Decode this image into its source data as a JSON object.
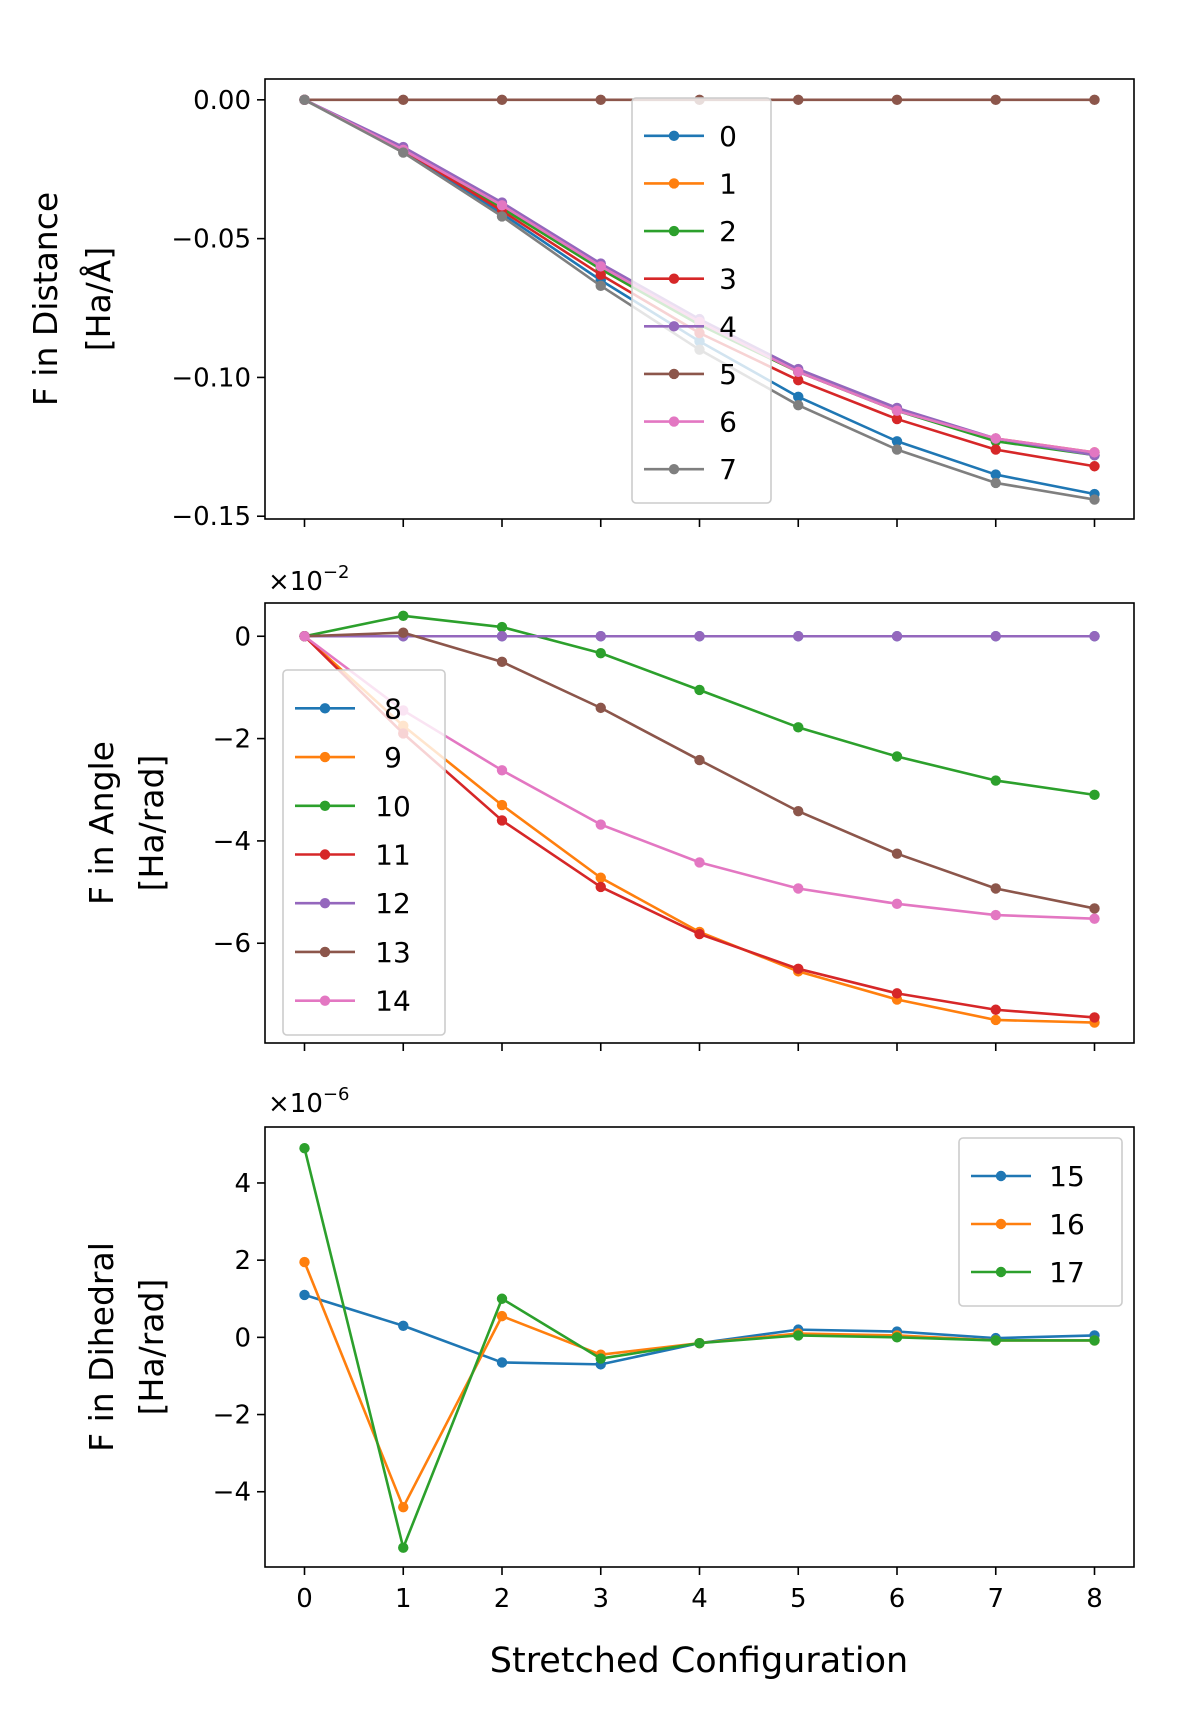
{
  "figure": {
    "xlabel": "Stretched Configuration",
    "x_tick_labels": [
      "0",
      "1",
      "2",
      "3",
      "4",
      "5",
      "6",
      "7",
      "8"
    ]
  },
  "chart_data": [
    {
      "type": "line",
      "title": "",
      "xlabel": "",
      "ylabel": [
        "F in Distance",
        "[Ha/Å]"
      ],
      "multiplier": null,
      "x": [
        0,
        1,
        2,
        3,
        4,
        5,
        6,
        7,
        8
      ],
      "xlim": [
        -0.4,
        8.4
      ],
      "ylim": [
        -0.151,
        0.0075
      ],
      "yticks": [
        0.0,
        -0.05,
        -0.1,
        -0.15
      ],
      "ytick_labels": [
        "0.00",
        "−0.05",
        "−0.10",
        "−0.15"
      ],
      "legend_position": "upper-center",
      "series": [
        {
          "name": "0",
          "color": "#1f77b4",
          "values": [
            0,
            -0.018,
            -0.041,
            -0.065,
            -0.087,
            -0.107,
            -0.123,
            -0.135,
            -0.142
          ]
        },
        {
          "name": "1",
          "color": "#ff7f0e",
          "values": [
            0,
            -0.018,
            -0.039,
            -0.061,
            -0.081,
            -0.098,
            -0.112,
            -0.122,
            -0.127
          ]
        },
        {
          "name": "2",
          "color": "#2ca02c",
          "values": [
            0,
            -0.018,
            -0.039,
            -0.061,
            -0.081,
            -0.098,
            -0.112,
            -0.123,
            -0.128
          ]
        },
        {
          "name": "3",
          "color": "#d62728",
          "values": [
            0,
            -0.018,
            -0.04,
            -0.063,
            -0.084,
            -0.101,
            -0.115,
            -0.126,
            -0.132
          ]
        },
        {
          "name": "4",
          "color": "#9467bd",
          "values": [
            0,
            -0.017,
            -0.037,
            -0.059,
            -0.079,
            -0.097,
            -0.111,
            -0.122,
            -0.128
          ]
        },
        {
          "name": "5",
          "color": "#8c564b",
          "values": [
            0,
            0,
            0,
            0,
            0,
            0,
            0,
            0,
            0
          ]
        },
        {
          "name": "6",
          "color": "#e377c2",
          "values": [
            0,
            -0.018,
            -0.038,
            -0.06,
            -0.08,
            -0.098,
            -0.112,
            -0.122,
            -0.127
          ]
        },
        {
          "name": "7",
          "color": "#7f7f7f",
          "values": [
            0,
            -0.019,
            -0.042,
            -0.067,
            -0.09,
            -0.11,
            -0.126,
            -0.138,
            -0.144
          ]
        }
      ]
    },
    {
      "type": "line",
      "title": "",
      "xlabel": "",
      "ylabel": [
        "F in Angle",
        "[Ha/rad]"
      ],
      "multiplier": {
        "prefix": "×10",
        "exponent": "−2"
      },
      "x": [
        0,
        1,
        2,
        3,
        4,
        5,
        6,
        7,
        8
      ],
      "xlim": [
        -0.4,
        8.4
      ],
      "ylim": [
        -7.95,
        0.65
      ],
      "yticks": [
        0,
        -2,
        -4,
        -6
      ],
      "ytick_labels": [
        "0",
        "−2",
        "−4",
        "−6"
      ],
      "legend_position": "center-left",
      "series": [
        {
          "name": "8",
          "color": "#1f77b4",
          "values": [
            0,
            0,
            0,
            0,
            0,
            0,
            0,
            0,
            0
          ]
        },
        {
          "name": "9",
          "color": "#ff7f0e",
          "values": [
            0,
            -1.75,
            -3.3,
            -4.72,
            -5.78,
            -6.55,
            -7.1,
            -7.5,
            -7.55
          ]
        },
        {
          "name": "10",
          "color": "#2ca02c",
          "values": [
            0,
            0.4,
            0.18,
            -0.33,
            -1.05,
            -1.78,
            -2.35,
            -2.82,
            -3.1
          ]
        },
        {
          "name": "11",
          "color": "#d62728",
          "values": [
            0,
            -1.9,
            -3.6,
            -4.9,
            -5.82,
            -6.5,
            -6.98,
            -7.3,
            -7.45
          ]
        },
        {
          "name": "12",
          "color": "#9467bd",
          "values": [
            0,
            0,
            0,
            0,
            0,
            0,
            0,
            0,
            0
          ]
        },
        {
          "name": "13",
          "color": "#8c564b",
          "values": [
            0,
            0.07,
            -0.5,
            -1.4,
            -2.42,
            -3.42,
            -4.25,
            -4.93,
            -5.32
          ]
        },
        {
          "name": "14",
          "color": "#e377c2",
          "values": [
            0,
            -1.45,
            -2.62,
            -3.68,
            -4.42,
            -4.93,
            -5.23,
            -5.45,
            -5.52
          ]
        }
      ]
    },
    {
      "type": "line",
      "title": "",
      "xlabel": "Stretched Configuration",
      "ylabel": [
        "F in Dihedral",
        "[Ha/rad]"
      ],
      "multiplier": {
        "prefix": "×10",
        "exponent": "−6"
      },
      "x": [
        0,
        1,
        2,
        3,
        4,
        5,
        6,
        7,
        8
      ],
      "xlim": [
        -0.4,
        8.4
      ],
      "ylim": [
        -5.95,
        5.45
      ],
      "yticks": [
        4,
        2,
        0,
        -2,
        -4
      ],
      "ytick_labels": [
        "4",
        "2",
        "0",
        "−2",
        "−4"
      ],
      "legend_position": "upper-right",
      "series": [
        {
          "name": "15",
          "color": "#1f77b4",
          "values": [
            1.1,
            0.3,
            -0.65,
            -0.7,
            -0.15,
            0.2,
            0.15,
            -0.02,
            0.05
          ]
        },
        {
          "name": "16",
          "color": "#ff7f0e",
          "values": [
            1.95,
            -4.4,
            0.55,
            -0.45,
            -0.15,
            0.1,
            0.05,
            -0.08,
            -0.08
          ]
        },
        {
          "name": "17",
          "color": "#2ca02c",
          "values": [
            4.9,
            -5.45,
            1.0,
            -0.55,
            -0.15,
            0.05,
            0.0,
            -0.08,
            -0.08
          ]
        }
      ]
    }
  ]
}
